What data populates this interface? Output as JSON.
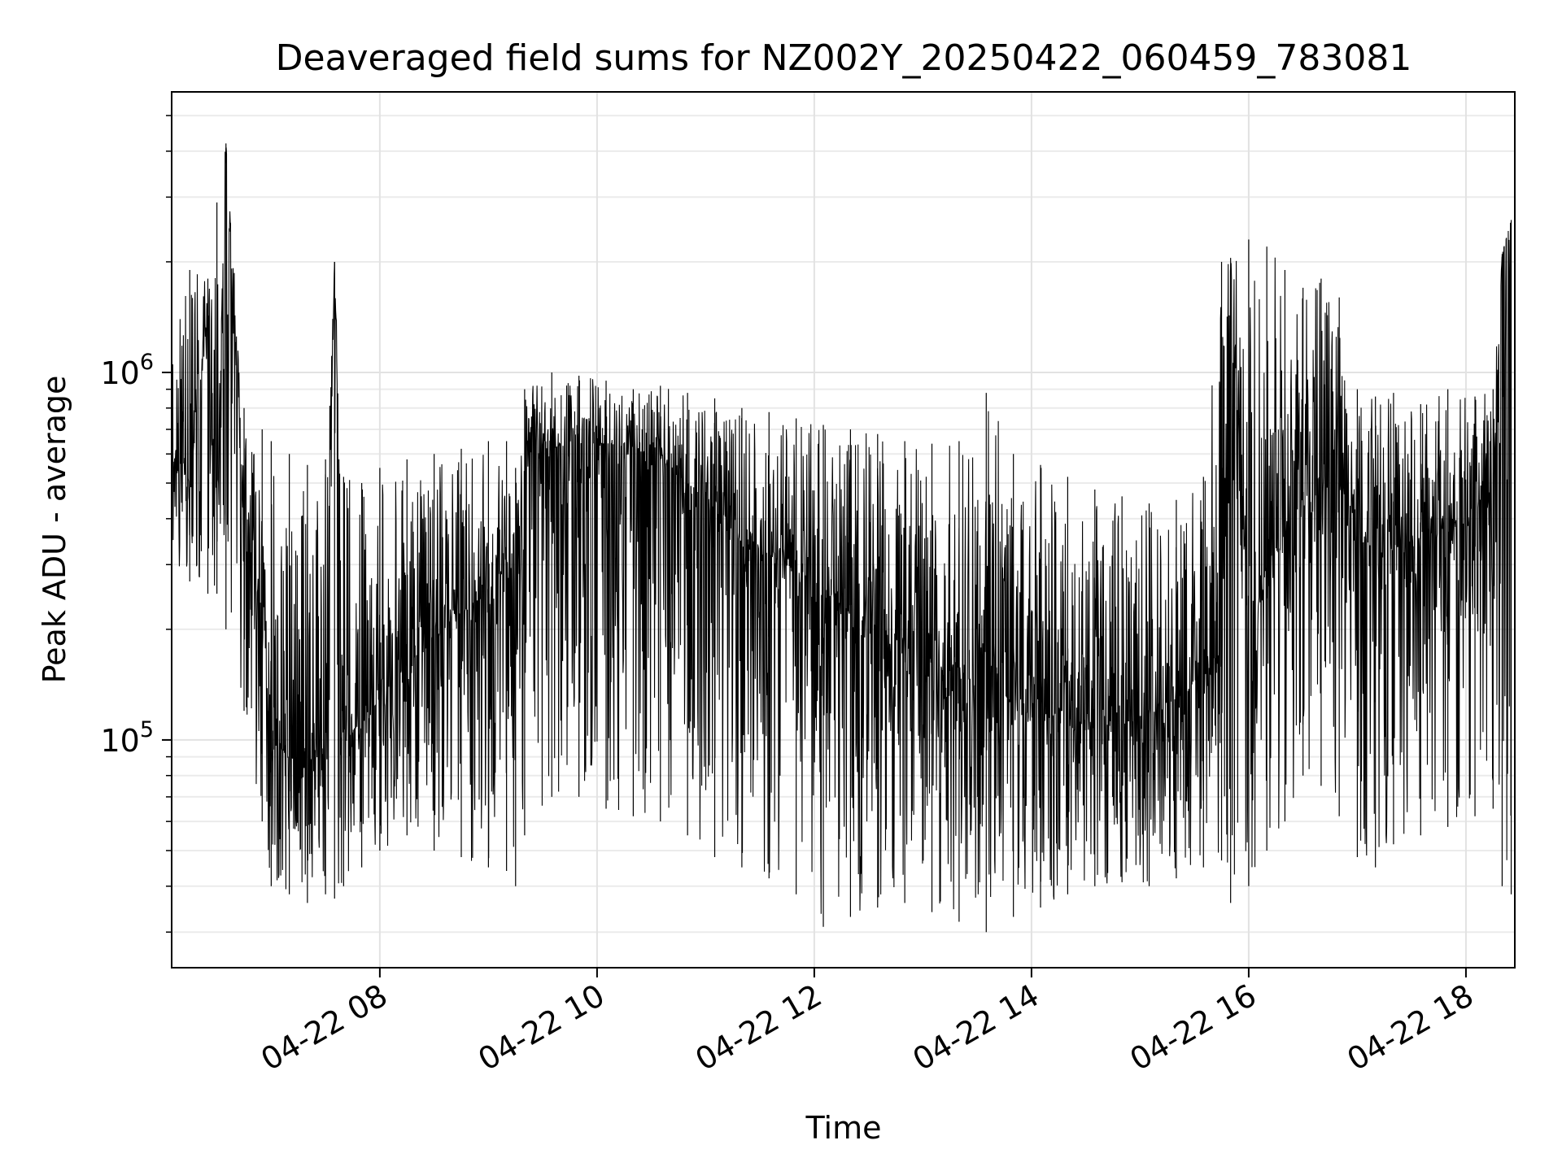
{
  "chart_data": {
    "type": "line",
    "title": "Deaveraged field sums for NZ002Y_20250422_060459_783081",
    "xlabel": "Time",
    "ylabel": "Peak ADU - average",
    "y_scale": "log",
    "xlim": [
      "2025-04-22 06:05",
      "2025-04-22 18:27"
    ],
    "ylim": [
      24000,
      5800000
    ],
    "grid": true,
    "line_color": "#000000",
    "x_ticks": [
      {
        "value": "2025-04-22 08:00",
        "label": "04-22 08"
      },
      {
        "value": "2025-04-22 10:00",
        "label": "04-22 10"
      },
      {
        "value": "2025-04-22 12:00",
        "label": "04-22 12"
      },
      {
        "value": "2025-04-22 14:00",
        "label": "04-22 14"
      },
      {
        "value": "2025-04-22 16:00",
        "label": "04-22 16"
      },
      {
        "value": "2025-04-22 18:00",
        "label": "04-22 18"
      }
    ],
    "y_ticks": [
      {
        "value": 100000,
        "base": "10",
        "exp": "5"
      },
      {
        "value": 1000000,
        "base": "10",
        "exp": "6"
      }
    ],
    "series": [
      {
        "x": [
          "2025-04-22 06:05",
          "2025-04-22 06:15",
          "2025-04-22 06:25",
          "2025-04-22 06:30",
          "2025-04-22 06:35",
          "2025-04-22 06:45",
          "2025-04-22 06:55",
          "2025-04-22 07:00",
          "2025-04-22 07:10",
          "2025-04-22 07:20",
          "2025-04-22 07:30",
          "2025-04-22 07:35",
          "2025-04-22 07:40",
          "2025-04-22 07:50",
          "2025-04-22 08:00",
          "2025-04-22 08:15",
          "2025-04-22 08:30",
          "2025-04-22 08:45",
          "2025-04-22 09:00",
          "2025-04-22 09:10",
          "2025-04-22 09:15",
          "2025-04-22 09:20",
          "2025-04-22 09:35",
          "2025-04-22 09:50",
          "2025-04-22 10:05",
          "2025-04-22 10:20",
          "2025-04-22 10:35",
          "2025-04-22 10:50",
          "2025-04-22 11:05",
          "2025-04-22 11:20",
          "2025-04-22 11:35",
          "2025-04-22 11:50",
          "2025-04-22 12:05",
          "2025-04-22 12:20",
          "2025-04-22 12:35",
          "2025-04-22 12:50",
          "2025-04-22 13:05",
          "2025-04-22 13:20",
          "2025-04-22 13:35",
          "2025-04-22 13:50",
          "2025-04-22 14:05",
          "2025-04-22 14:20",
          "2025-04-22 14:35",
          "2025-04-22 14:50",
          "2025-04-22 15:05",
          "2025-04-22 15:20",
          "2025-04-22 15:35",
          "2025-04-22 15:45",
          "2025-04-22 15:50",
          "2025-04-22 16:00",
          "2025-04-22 16:10",
          "2025-04-22 16:20",
          "2025-04-22 16:30",
          "2025-04-22 16:40",
          "2025-04-22 16:50",
          "2025-04-22 17:00",
          "2025-04-22 17:10",
          "2025-04-22 17:20",
          "2025-04-22 17:35",
          "2025-04-22 17:50",
          "2025-04-22 18:05",
          "2025-04-22 18:15",
          "2025-04-22 18:20",
          "2025-04-22 18:25"
        ],
        "y": [
          600000,
          500000,
          1500000,
          450000,
          4200000,
          350000,
          250000,
          100000,
          90000,
          85000,
          100000,
          2000000,
          100000,
          110000,
          130000,
          160000,
          190000,
          220000,
          260000,
          300000,
          250000,
          600000,
          620000,
          640000,
          640000,
          620000,
          580000,
          500000,
          420000,
          360000,
          320000,
          290000,
          260000,
          220000,
          200000,
          180000,
          160000,
          150000,
          140000,
          130000,
          120000,
          120000,
          110000,
          110000,
          120000,
          130000,
          150000,
          160000,
          2000000,
          200000,
          300000,
          350000,
          420000,
          480000,
          500000,
          380000,
          320000,
          330000,
          360000,
          380000,
          420000,
          450000,
          2100000,
          2600000
        ],
        "y_min": [
          280000,
          270000,
          250000,
          250000,
          200000,
          120000,
          60000,
          40000,
          38000,
          36000,
          38000,
          37000,
          40000,
          45000,
          50000,
          55000,
          50000,
          48000,
          45000,
          44000,
          40000,
          55000,
          70000,
          70000,
          65000,
          62000,
          60000,
          55000,
          48000,
          45000,
          42000,
          38000,
          31000,
          33000,
          35000,
          36000,
          34000,
          32000,
          30000,
          33000,
          35000,
          38000,
          40000,
          41000,
          40000,
          42000,
          45000,
          47000,
          36000,
          40000,
          50000,
          60000,
          80000,
          75000,
          62000,
          48000,
          45000,
          52000,
          55000,
          58000,
          62000,
          65000,
          40000,
          38000
        ],
        "y_max": [
          1600000,
          1900000,
          1800000,
          2900000,
          4200000,
          800000,
          700000,
          650000,
          600000,
          560000,
          580000,
          2000000,
          520000,
          500000,
          550000,
          580000,
          600000,
          620000,
          650000,
          650000,
          550000,
          900000,
          1000000,
          980000,
          950000,
          900000,
          920000,
          880000,
          850000,
          800000,
          780000,
          750000,
          720000,
          700000,
          680000,
          650000,
          640000,
          650000,
          880000,
          600000,
          560000,
          520000,
          480000,
          460000,
          440000,
          450000,
          520000,
          2000000,
          2050000,
          2300000,
          2200000,
          1900000,
          1700000,
          1800000,
          1600000,
          900000,
          860000,
          880000,
          820000,
          900000,
          860000,
          900000,
          2100000,
          2600000
        ]
      }
    ]
  }
}
